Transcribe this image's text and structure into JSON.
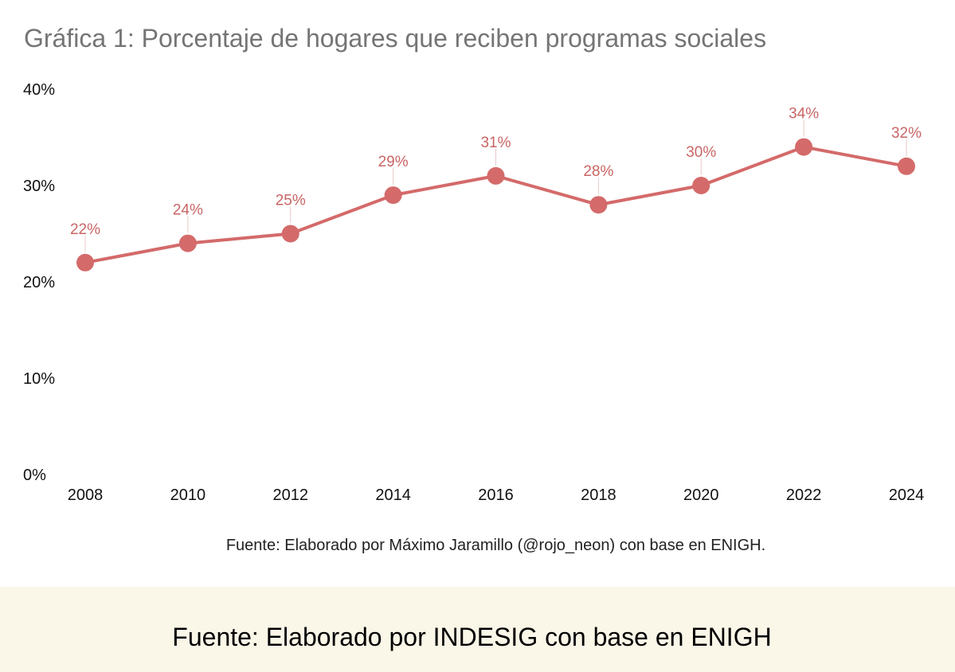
{
  "chart_data": {
    "type": "line",
    "title": "Gráfica 1: Porcentaje de hogares que reciben programas sociales",
    "xlabel": "",
    "ylabel": "",
    "x": [
      "2008",
      "2010",
      "2012",
      "2014",
      "2016",
      "2018",
      "2020",
      "2022",
      "2024"
    ],
    "series": [
      {
        "values": [
          22,
          24,
          25,
          29,
          31,
          28,
          30,
          34,
          32
        ]
      }
    ],
    "data_labels": [
      "22%",
      "24%",
      "25%",
      "29%",
      "31%",
      "28%",
      "30%",
      "34%",
      "32%"
    ],
    "ylim": [
      0,
      40
    ],
    "yticks": [
      "0%",
      "10%",
      "20%",
      "30%",
      "40%"
    ],
    "ytick_values": [
      0,
      10,
      20,
      30,
      40
    ],
    "grid": false,
    "legend": "none",
    "colors": {
      "series": "#d46a6a",
      "label": "#c96565",
      "leader": "#e7c9c9"
    },
    "source": "Fuente: Elaborado por Máximo Jaramillo (@rojo_neon) con base en ENIGH."
  },
  "footer": {
    "text": "Fuente: Elaborado por INDESIG con base en ENIGH",
    "background": "#fbf7e8"
  }
}
